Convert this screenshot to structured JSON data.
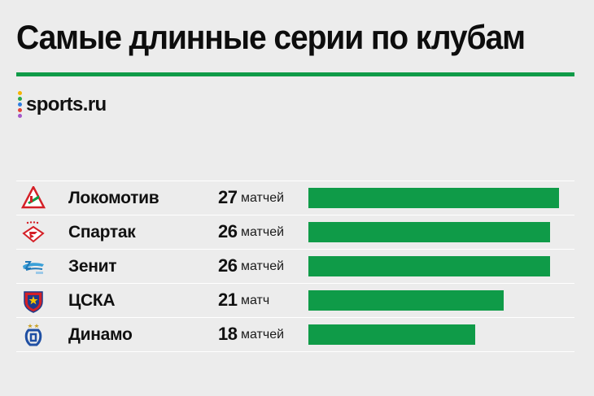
{
  "title": "Самые длинные серии по клубам",
  "brand": {
    "name": "sports.ru",
    "dot_colors": [
      "#f5b400",
      "#27a94b",
      "#2f7de1",
      "#e2453b",
      "#a456c9"
    ]
  },
  "colors": {
    "accent": "#0f9b48"
  },
  "chart_data": {
    "type": "bar",
    "orientation": "horizontal",
    "title": "Самые длинные серии по клубам",
    "categories": [
      "Локомотив",
      "Спартак",
      "Зенит",
      "ЦСКА",
      "Динамо"
    ],
    "values": [
      27,
      26,
      26,
      21,
      18
    ],
    "value_labels": [
      "27",
      "26",
      "26",
      "21",
      "18"
    ],
    "unit_labels": [
      "матчей",
      "матчей",
      "матчей",
      "матч",
      "матчей"
    ],
    "logos": [
      "lokomotiv-logo-icon",
      "spartak-logo-icon",
      "zenit-logo-icon",
      "cska-logo-icon",
      "dinamo-logo-icon"
    ],
    "xlim": [
      0,
      27
    ],
    "bar_color": "#0f9b48",
    "grid": false,
    "legend": "none"
  }
}
